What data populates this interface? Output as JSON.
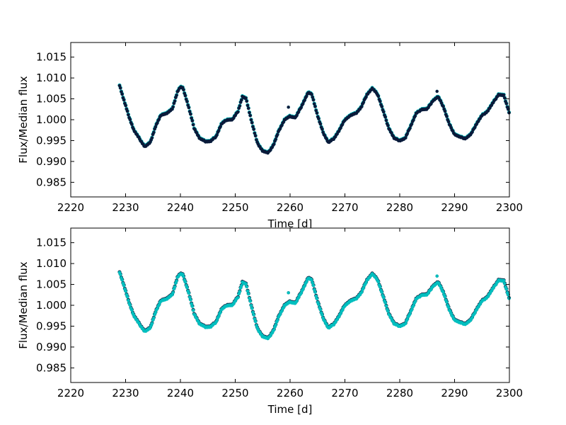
{
  "chart_data": [
    {
      "type": "scatter",
      "xlabel": "Time [d]",
      "ylabel": "Flux/Median flux",
      "xlim": [
        2220,
        2300
      ],
      "ylim": [
        0.9815,
        1.0185
      ],
      "xticks": [
        2220,
        2230,
        2240,
        2250,
        2260,
        2270,
        2280,
        2290,
        2300
      ],
      "xtick_labels": [
        "2220",
        "2230",
        "2240",
        "2250",
        "2260",
        "2270",
        "2280",
        "2290",
        "2300"
      ],
      "yticks": [
        0.985,
        0.99,
        0.995,
        1.0,
        1.005,
        1.01,
        1.015
      ],
      "ytick_labels": [
        "0.985",
        "0.990",
        "0.995",
        "1.000",
        "1.005",
        "1.010",
        "1.015"
      ],
      "series": [
        {
          "color": "#00bfbf",
          "role": "underlay"
        },
        {
          "color": "#0a1a3a",
          "role": "overlay"
        }
      ],
      "curve": {
        "x": [
          2228.9,
          2229.5,
          2230.5,
          2231.5,
          2232.5,
          2233.5,
          2234.5,
          2235.5,
          2236.5,
          2237.5,
          2238.5,
          2239.5,
          2240.0,
          2240.5,
          2241.5,
          2242.5,
          2243.5,
          2244.5,
          2245.5,
          2246.5,
          2247.5,
          2248.5,
          2249.5,
          2250.5,
          2251.3,
          2252.0,
          2253.0,
          2254.0,
          2255.0,
          2256.0,
          2257.0,
          2258.0,
          2259.0,
          2260.0,
          2261.0,
          2262.0,
          2263.3,
          2264.0,
          2265.0,
          2266.0,
          2267.0,
          2268.0,
          2269.0,
          2270.0,
          2271.0,
          2272.0,
          2273.0,
          2274.0,
          2275.0,
          2276.0,
          2277.0,
          2278.0,
          2279.0,
          2280.0,
          2281.0,
          2282.0,
          2283.0,
          2284.0,
          2285.0,
          2286.0,
          2287.0,
          2288.0,
          2289.0,
          2290.0,
          2291.0,
          2292.0,
          2293.0,
          2294.0,
          2295.0,
          2296.0,
          2297.0,
          2298.0,
          2299.0,
          2300.0
        ],
        "y": [
          1.0083,
          1.0055,
          1.0012,
          0.9975,
          0.9955,
          0.9935,
          0.9945,
          0.9985,
          1.0012,
          1.0015,
          1.0025,
          1.0068,
          1.0078,
          1.0075,
          1.003,
          0.998,
          0.9955,
          0.9948,
          0.9948,
          0.996,
          0.999,
          1.0,
          1.0,
          1.002,
          1.0055,
          1.005,
          0.9995,
          0.9945,
          0.9925,
          0.992,
          0.994,
          0.9975,
          1.0,
          1.0008,
          1.0005,
          1.003,
          1.0065,
          1.006,
          1.001,
          0.997,
          0.9945,
          0.9955,
          0.9975,
          1.0,
          1.001,
          1.0015,
          1.003,
          1.006,
          1.0075,
          1.006,
          1.002,
          0.998,
          0.9955,
          0.995,
          0.9955,
          0.9985,
          1.0015,
          1.0025,
          1.0025,
          1.0045,
          1.0055,
          1.003,
          0.999,
          0.9965,
          0.9958,
          0.9955,
          0.9965,
          0.999,
          1.001,
          1.002,
          1.004,
          1.006,
          1.0058,
          1.0015
        ]
      },
      "outliers": [
        {
          "x": 2259.7,
          "y": 1.003
        },
        {
          "x": 2286.8,
          "y": 1.0068
        }
      ]
    },
    {
      "type": "scatter",
      "xlabel": "Time [d]",
      "ylabel": "Flux/Median flux",
      "xlim": [
        2220,
        2300
      ],
      "ylim": [
        0.9815,
        1.0185
      ],
      "xticks": [
        2220,
        2230,
        2240,
        2250,
        2260,
        2270,
        2280,
        2290,
        2300
      ],
      "xtick_labels": [
        "2220",
        "2230",
        "2240",
        "2250",
        "2260",
        "2270",
        "2280",
        "2290",
        "2300"
      ],
      "yticks": [
        0.985,
        0.99,
        0.995,
        1.0,
        1.005,
        1.01,
        1.015
      ],
      "ytick_labels": [
        "0.985",
        "0.990",
        "0.995",
        "1.000",
        "1.005",
        "1.010",
        "1.015"
      ],
      "series": [
        {
          "color": "#0a1a3a",
          "role": "underlay"
        },
        {
          "color": "#00bfbf",
          "role": "overlay"
        }
      ],
      "curve": {
        "x": [
          2228.9,
          2229.5,
          2230.5,
          2231.5,
          2232.5,
          2233.5,
          2234.5,
          2235.5,
          2236.5,
          2237.5,
          2238.5,
          2239.5,
          2240.0,
          2240.5,
          2241.5,
          2242.5,
          2243.5,
          2244.5,
          2245.5,
          2246.5,
          2247.5,
          2248.5,
          2249.5,
          2250.5,
          2251.3,
          2252.0,
          2253.0,
          2254.0,
          2255.0,
          2256.0,
          2257.0,
          2258.0,
          2259.0,
          2260.0,
          2261.0,
          2262.0,
          2263.3,
          2264.0,
          2265.0,
          2266.0,
          2267.0,
          2268.0,
          2269.0,
          2270.0,
          2271.0,
          2272.0,
          2273.0,
          2274.0,
          2275.0,
          2276.0,
          2277.0,
          2278.0,
          2279.0,
          2280.0,
          2281.0,
          2282.0,
          2283.0,
          2284.0,
          2285.0,
          2286.0,
          2287.0,
          2288.0,
          2289.0,
          2290.0,
          2291.0,
          2292.0,
          2293.0,
          2294.0,
          2295.0,
          2296.0,
          2297.0,
          2298.0,
          2299.0,
          2300.0
        ],
        "y": [
          1.008,
          1.0055,
          1.0012,
          0.9975,
          0.9955,
          0.9937,
          0.9945,
          0.9985,
          1.0012,
          1.0015,
          1.0025,
          1.0068,
          1.0075,
          1.0072,
          1.003,
          0.998,
          0.9955,
          0.9948,
          0.9948,
          0.996,
          0.999,
          1.0,
          1.0,
          1.002,
          1.0055,
          1.005,
          0.9995,
          0.9945,
          0.9925,
          0.992,
          0.994,
          0.9975,
          1.0,
          1.0008,
          1.0005,
          1.003,
          1.0065,
          1.006,
          1.001,
          0.997,
          0.9945,
          0.9955,
          0.9975,
          1.0,
          1.001,
          1.0015,
          1.003,
          1.006,
          1.0075,
          1.006,
          1.002,
          0.998,
          0.9955,
          0.995,
          0.9955,
          0.9985,
          1.0015,
          1.0025,
          1.0025,
          1.0045,
          1.0055,
          1.003,
          0.999,
          0.9965,
          0.9958,
          0.9955,
          0.9965,
          0.999,
          1.001,
          1.002,
          1.004,
          1.006,
          1.0058,
          1.0015
        ]
      },
      "outliers": [
        {
          "x": 2259.7,
          "y": 1.003
        },
        {
          "x": 2286.8,
          "y": 1.007
        }
      ]
    }
  ]
}
